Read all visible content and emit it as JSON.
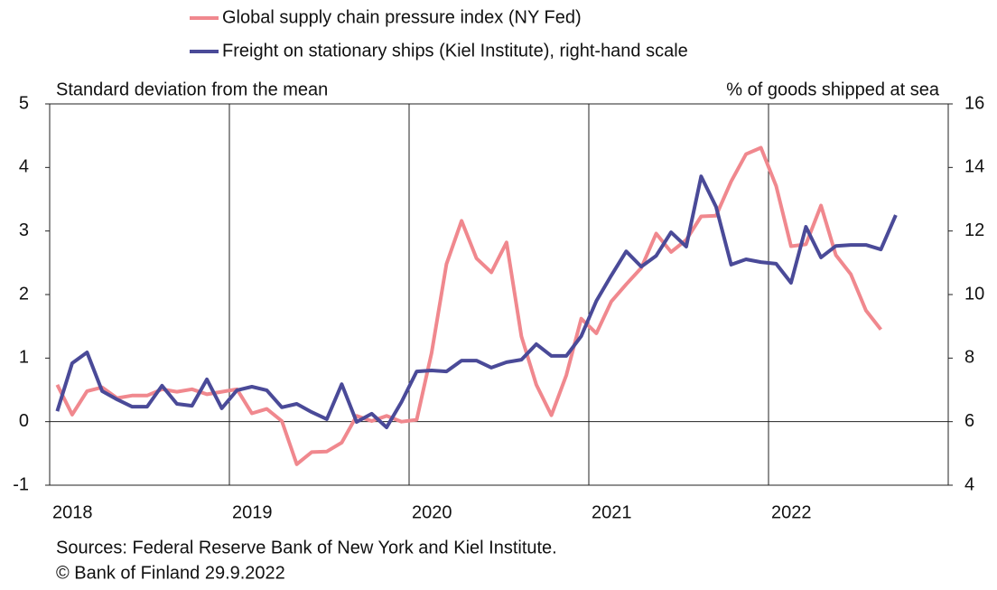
{
  "chart_data": {
    "type": "line",
    "legend_labels_note_free": null,
    "y_label": "Standard deviation from the mean",
    "y2_label": "% of goods shipped at sea",
    "source": "Sources: Federal Reserve Bank of New York and Kiel Institute.",
    "copyright": "© Bank of Finland 29.9.2022",
    "x": [
      2018.042,
      2018.125,
      2018.208,
      2018.292,
      2018.375,
      2018.458,
      2018.542,
      2018.625,
      2018.708,
      2018.792,
      2018.875,
      2018.958,
      2019.042,
      2019.125,
      2019.208,
      2019.292,
      2019.375,
      2019.458,
      2019.542,
      2019.625,
      2019.708,
      2019.792,
      2019.875,
      2019.958,
      2020.042,
      2020.125,
      2020.208,
      2020.292,
      2020.375,
      2020.458,
      2020.542,
      2020.625,
      2020.708,
      2020.792,
      2020.875,
      2020.958,
      2021.042,
      2021.125,
      2021.208,
      2021.292,
      2021.375,
      2021.458,
      2021.542,
      2021.625,
      2021.708,
      2021.792,
      2021.875,
      2021.958,
      2022.042,
      2022.125,
      2022.208,
      2022.292,
      2022.375,
      2022.458,
      2022.542,
      2022.625,
      2022.708
    ],
    "series": [
      {
        "name": "Global supply chain pressure index (NY Fed)",
        "color": "#f0888e",
        "axis": "y",
        "values": [
          0.58,
          0.11,
          0.48,
          0.54,
          0.37,
          0.41,
          0.41,
          0.51,
          0.47,
          0.51,
          0.43,
          0.47,
          0.51,
          0.13,
          0.2,
          0.01,
          -0.67,
          -0.48,
          -0.47,
          -0.33,
          0.09,
          0.01,
          0.09,
          0.0,
          0.03,
          1.08,
          2.48,
          3.16,
          2.57,
          2.35,
          2.82,
          1.34,
          0.58,
          0.1,
          0.73,
          1.62,
          1.39,
          1.89,
          2.16,
          2.42,
          2.96,
          2.67,
          2.86,
          3.23,
          3.24,
          3.78,
          4.21,
          4.31,
          3.71,
          2.76,
          2.79,
          3.4,
          2.62,
          2.32,
          1.75,
          1.45,
          null
        ]
      },
      {
        "name": "Freight on stationary ships (Kiel Institute), right-hand scale",
        "color": "#4a4a98",
        "axis": "y2",
        "values": [
          6.33,
          7.84,
          8.18,
          6.96,
          6.7,
          6.47,
          6.47,
          7.13,
          6.56,
          6.5,
          7.33,
          6.42,
          6.99,
          7.1,
          6.99,
          6.45,
          6.56,
          6.3,
          6.08,
          7.18,
          5.99,
          6.25,
          5.82,
          6.62,
          7.58,
          7.61,
          7.58,
          7.92,
          7.92,
          7.7,
          7.87,
          7.95,
          8.44,
          8.07,
          8.07,
          8.69,
          9.8,
          10.6,
          11.36,
          10.88,
          11.22,
          11.96,
          11.51,
          13.72,
          12.76,
          10.94,
          11.11,
          11.02,
          10.97,
          10.37,
          12.13,
          11.17,
          11.53,
          11.56,
          11.56,
          11.42,
          12.5
        ]
      }
    ],
    "xlim": [
      2018,
      2023
    ],
    "xticks": [
      2018,
      2019,
      2020,
      2021,
      2022
    ],
    "ylim": [
      -1,
      5
    ],
    "yticks": [
      -1,
      0,
      1,
      2,
      3,
      4,
      5
    ],
    "y2lim": [
      4,
      16
    ],
    "y2ticks": [
      4,
      6,
      8,
      10,
      12,
      14,
      16
    ],
    "grid": "x"
  }
}
